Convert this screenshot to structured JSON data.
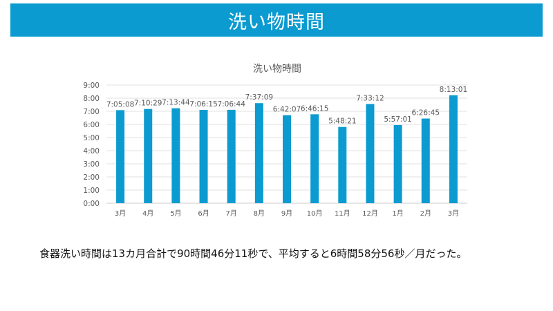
{
  "page": {
    "title": "洗い物時間",
    "summary": "食器洗い時間は13カ月合計で90時間46分11秒で、平均すると6時間58分56秒／月だった。"
  },
  "colors": {
    "banner": "#0b9bd0",
    "bar": "#0b9bd0",
    "grid": "#e2e2e2",
    "text": "#595959"
  },
  "chart_data": {
    "type": "bar",
    "title": "洗い物時間",
    "xlabel": "",
    "ylabel": "",
    "categories": [
      "3月",
      "4月",
      "5月",
      "6月",
      "7月",
      "8月",
      "9月",
      "10月",
      "11月",
      "12月",
      "1月",
      "2月",
      "3月"
    ],
    "values": [
      7.0856,
      7.1747,
      7.2289,
      7.1042,
      7.1122,
      7.6192,
      6.7019,
      6.7708,
      5.8058,
      7.5533,
      5.9503,
      6.4458,
      8.2169
    ],
    "data_labels": [
      "7:05:08",
      "7:10:29",
      "7:13:44",
      "7:06:15",
      "7:06:44",
      "7:37:09",
      "6:42:07",
      "6:46:15",
      "5:48:21",
      "7:33:12",
      "5:57:01",
      "6:26:45",
      "8:13:01"
    ],
    "y_ticks": [
      "0:00",
      "1:00",
      "2:00",
      "3:00",
      "4:00",
      "5:00",
      "6:00",
      "7:00",
      "8:00",
      "9:00"
    ],
    "ylim": [
      0,
      9
    ],
    "grid": true,
    "legend": "none"
  }
}
